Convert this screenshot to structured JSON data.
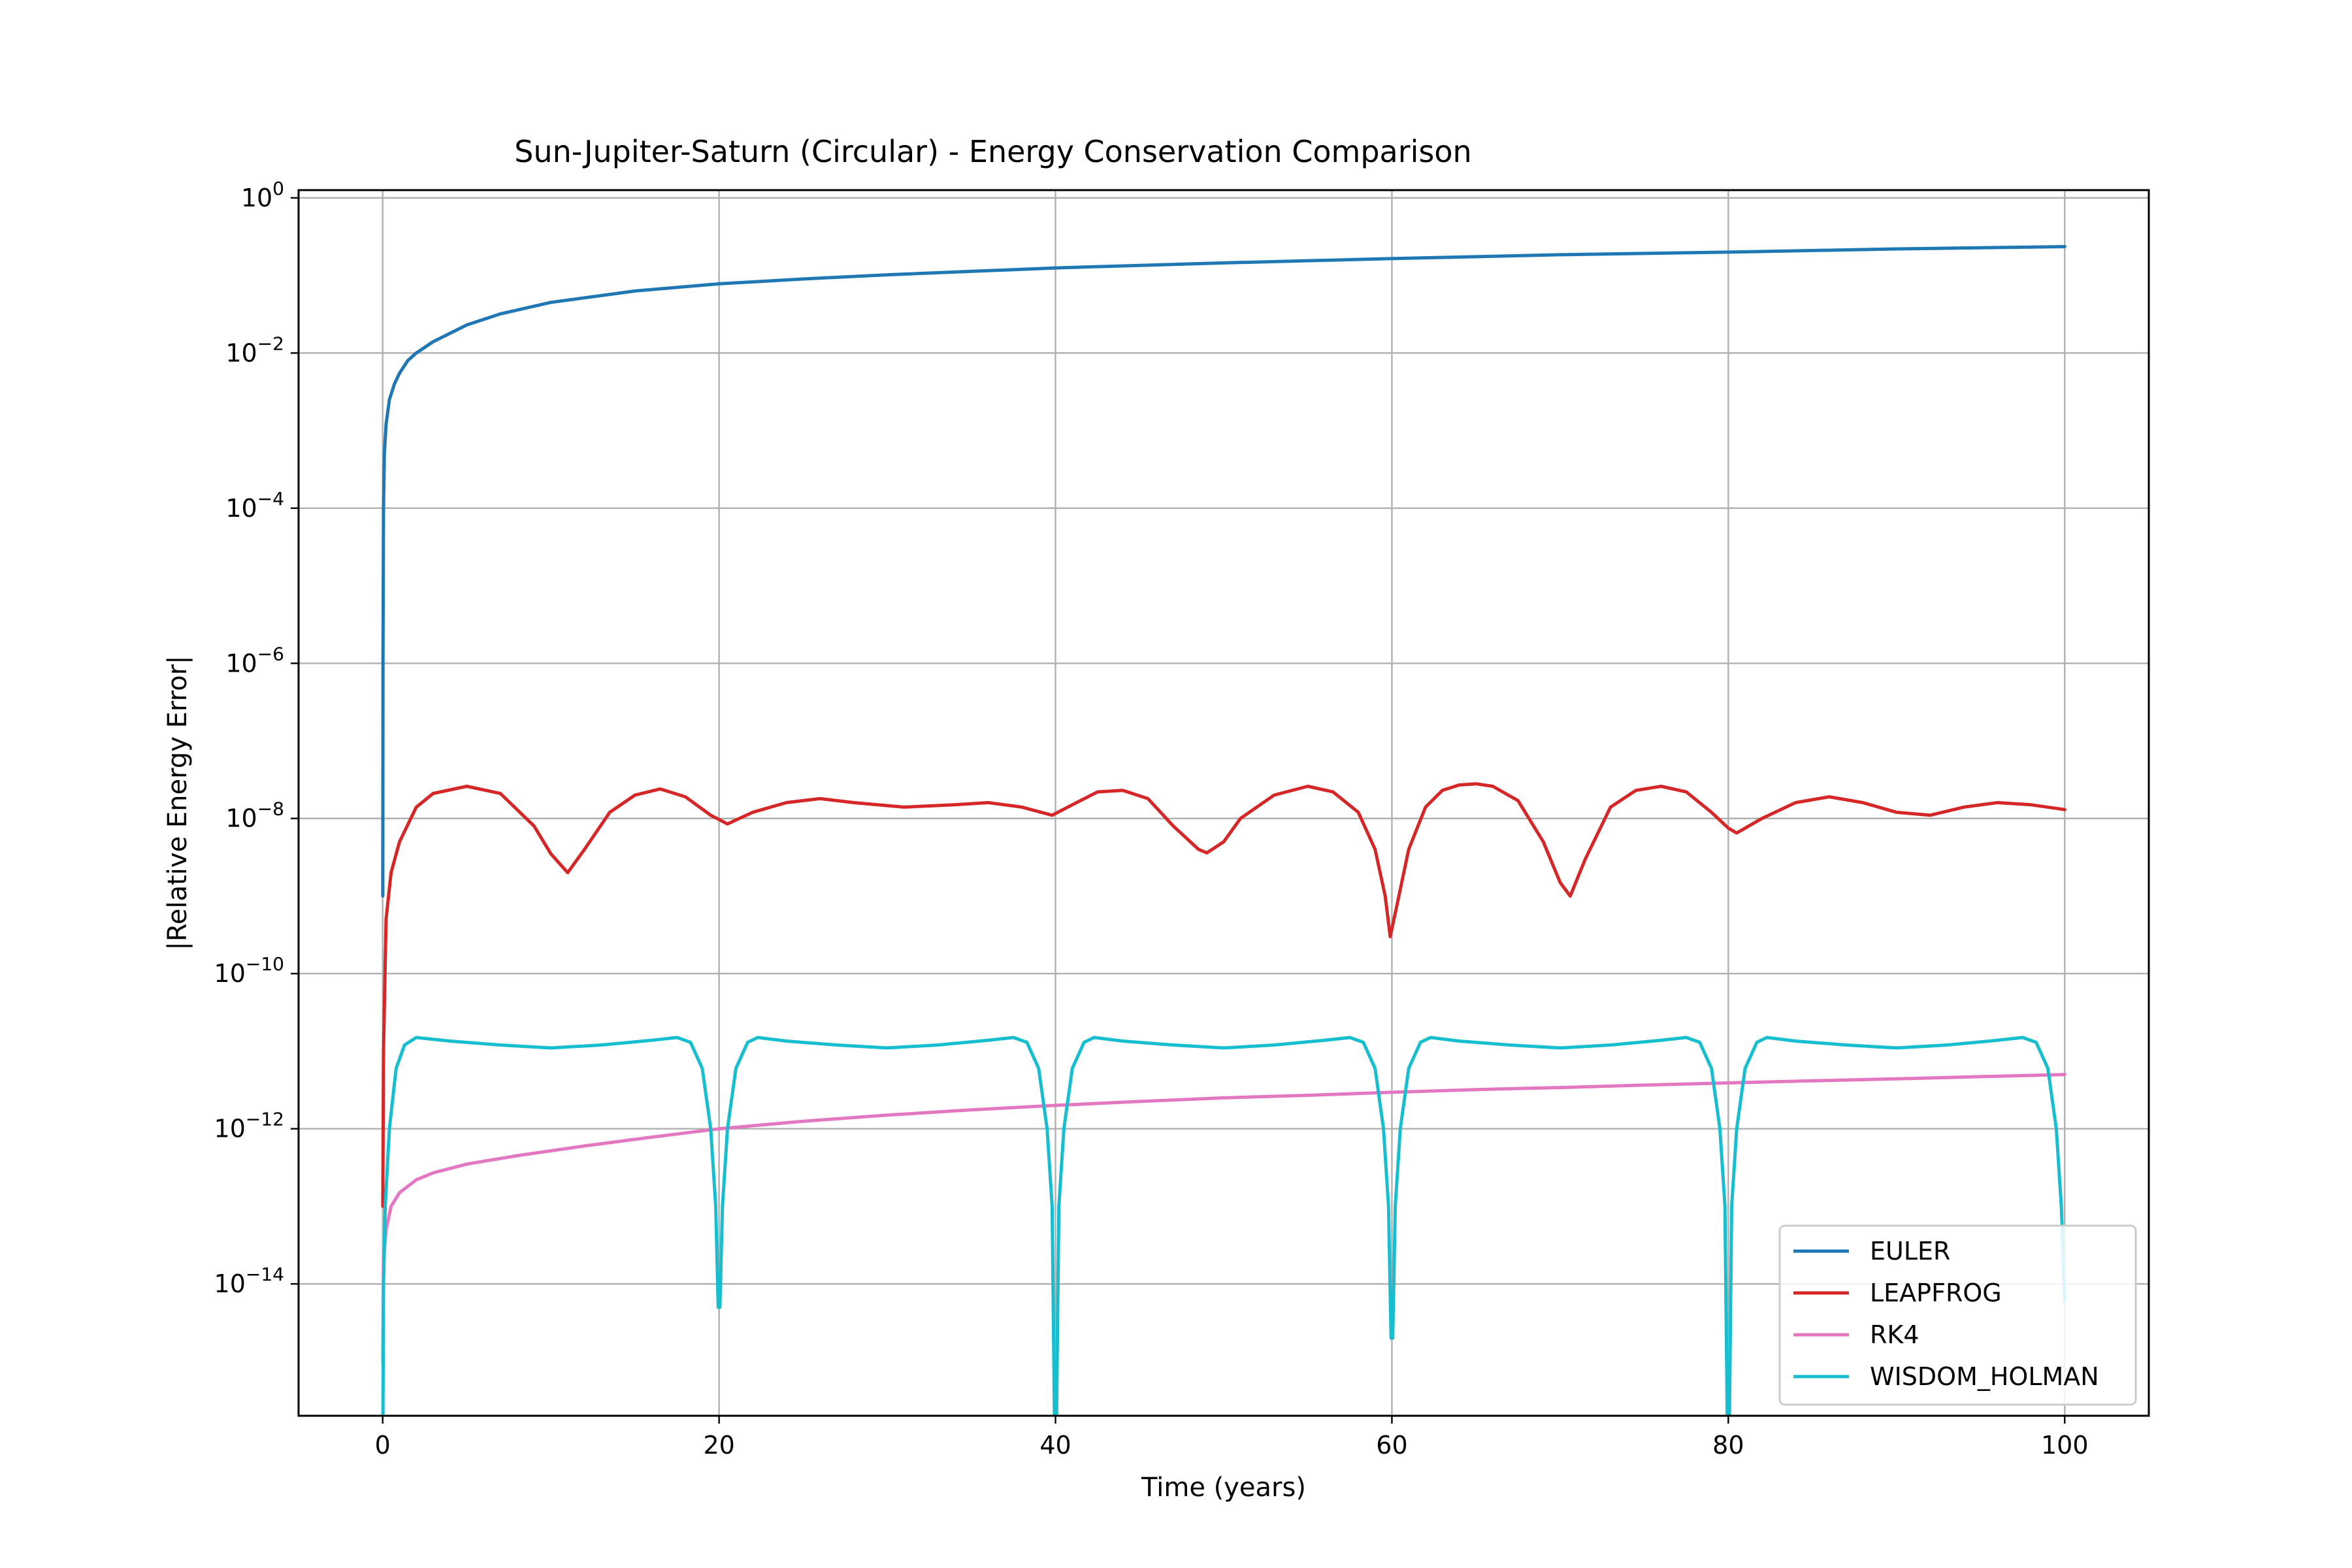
{
  "chart_data": {
    "type": "line",
    "title": "Sun-Jupiter-Saturn (Circular) - Energy Conservation Comparison",
    "xlabel": "Time (years)",
    "ylabel": "|Relative Energy Error|",
    "x_ticks": [
      "0",
      "20",
      "40",
      "60",
      "80",
      "100"
    ],
    "y_ticks": [
      {
        "base": "10",
        "exp": "0"
      },
      {
        "base": "10",
        "exp": "−2"
      },
      {
        "base": "10",
        "exp": "−4"
      },
      {
        "base": "10",
        "exp": "−6"
      },
      {
        "base": "10",
        "exp": "−8"
      },
      {
        "base": "10",
        "exp": "−10"
      },
      {
        "base": "10",
        "exp": "−12"
      },
      {
        "base": "10",
        "exp": "−14"
      }
    ],
    "xlim": [
      -5,
      105
    ],
    "ylim_log10": [
      -15.7,
      0.1
    ],
    "yscale": "log",
    "grid": true,
    "legend_position": "lower right",
    "series": [
      {
        "name": "EULER",
        "color": "#1f77b4",
        "points": [
          [
            0.005,
            1e-09
          ],
          [
            0.02,
            1e-06
          ],
          [
            0.05,
            0.0001
          ],
          [
            0.1,
            0.0005
          ],
          [
            0.2,
            0.0012
          ],
          [
            0.4,
            0.0025
          ],
          [
            0.7,
            0.004
          ],
          [
            1,
            0.0055
          ],
          [
            1.5,
            0.008
          ],
          [
            2,
            0.01
          ],
          [
            3,
            0.014
          ],
          [
            5,
            0.023
          ],
          [
            7,
            0.032
          ],
          [
            10,
            0.045
          ],
          [
            15,
            0.063
          ],
          [
            20,
            0.078
          ],
          [
            25,
            0.09
          ],
          [
            30,
            0.102
          ],
          [
            40,
            0.125
          ],
          [
            50,
            0.145
          ],
          [
            60,
            0.165
          ],
          [
            70,
            0.185
          ],
          [
            80,
            0.2
          ],
          [
            90,
            0.22
          ],
          [
            100,
            0.235
          ]
        ]
      },
      {
        "name": "LEAPFROG",
        "color": "#d62728",
        "points": [
          [
            0.005,
            1e-13
          ],
          [
            0.05,
            1e-11
          ],
          [
            0.2,
            5e-10
          ],
          [
            0.5,
            2e-09
          ],
          [
            1,
            5e-09
          ],
          [
            2,
            1.4e-08
          ],
          [
            3,
            2.1e-08
          ],
          [
            5,
            2.6e-08
          ],
          [
            7,
            2.1e-08
          ],
          [
            9,
            8e-09
          ],
          [
            10,
            3.5e-09
          ],
          [
            11,
            2e-09
          ],
          [
            12,
            4e-09
          ],
          [
            13.5,
            1.2e-08
          ],
          [
            15,
            2e-08
          ],
          [
            16.5,
            2.4e-08
          ],
          [
            18,
            1.9e-08
          ],
          [
            19.5,
            1.1e-08
          ],
          [
            20.5,
            8.5e-09
          ],
          [
            22,
            1.2e-08
          ],
          [
            24,
            1.6e-08
          ],
          [
            26,
            1.8e-08
          ],
          [
            28,
            1.6e-08
          ],
          [
            31,
            1.4e-08
          ],
          [
            34,
            1.5e-08
          ],
          [
            36,
            1.6e-08
          ],
          [
            38,
            1.4e-08
          ],
          [
            39.8,
            1.1e-08
          ],
          [
            41,
            1.5e-08
          ],
          [
            42.5,
            2.2e-08
          ],
          [
            44,
            2.3e-08
          ],
          [
            45.5,
            1.8e-08
          ],
          [
            47,
            8e-09
          ],
          [
            48.5,
            4e-09
          ],
          [
            49,
            3.6e-09
          ],
          [
            50,
            5e-09
          ],
          [
            51,
            1e-08
          ],
          [
            53,
            2e-08
          ],
          [
            55,
            2.6e-08
          ],
          [
            56.5,
            2.2e-08
          ],
          [
            58,
            1.2e-08
          ],
          [
            59,
            4e-09
          ],
          [
            59.6,
            1e-09
          ],
          [
            59.9,
            3e-10
          ],
          [
            60.2,
            6e-10
          ],
          [
            61,
            4e-09
          ],
          [
            62,
            1.4e-08
          ],
          [
            63,
            2.3e-08
          ],
          [
            64,
            2.7e-08
          ],
          [
            65,
            2.8e-08
          ],
          [
            66,
            2.6e-08
          ],
          [
            67.5,
            1.7e-08
          ],
          [
            69,
            5e-09
          ],
          [
            70,
            1.5e-09
          ],
          [
            70.6,
            1e-09
          ],
          [
            71.5,
            3e-09
          ],
          [
            73,
            1.4e-08
          ],
          [
            74.5,
            2.3e-08
          ],
          [
            76,
            2.6e-08
          ],
          [
            77.5,
            2.2e-08
          ],
          [
            79,
            1.2e-08
          ],
          [
            80,
            7.5e-09
          ],
          [
            80.5,
            6.5e-09
          ],
          [
            82,
            1e-08
          ],
          [
            84,
            1.6e-08
          ],
          [
            86,
            1.9e-08
          ],
          [
            88,
            1.6e-08
          ],
          [
            90,
            1.2e-08
          ],
          [
            92,
            1.1e-08
          ],
          [
            94,
            1.4e-08
          ],
          [
            96,
            1.6e-08
          ],
          [
            98,
            1.5e-08
          ],
          [
            100,
            1.3e-08
          ]
        ]
      },
      {
        "name": "RK4",
        "color": "#e377c2",
        "points": [
          [
            0.005,
            1e-15
          ],
          [
            0.05,
            2e-14
          ],
          [
            0.2,
            5e-14
          ],
          [
            0.5,
            1e-13
          ],
          [
            1,
            1.5e-13
          ],
          [
            2,
            2.2e-13
          ],
          [
            3,
            2.7e-13
          ],
          [
            5,
            3.5e-13
          ],
          [
            8,
            4.5e-13
          ],
          [
            12,
            6e-13
          ],
          [
            16,
            7.8e-13
          ],
          [
            20,
            1e-12
          ],
          [
            25,
            1.25e-12
          ],
          [
            30,
            1.5e-12
          ],
          [
            35,
            1.75e-12
          ],
          [
            40,
            2e-12
          ],
          [
            45,
            2.25e-12
          ],
          [
            50,
            2.5e-12
          ],
          [
            55,
            2.7e-12
          ],
          [
            60,
            2.95e-12
          ],
          [
            65,
            3.2e-12
          ],
          [
            70,
            3.4e-12
          ],
          [
            75,
            3.65e-12
          ],
          [
            80,
            3.9e-12
          ],
          [
            85,
            4.15e-12
          ],
          [
            90,
            4.4e-12
          ],
          [
            95,
            4.7e-12
          ],
          [
            100,
            5e-12
          ]
        ]
      },
      {
        "name": "WISDOM_HOLMAN",
        "color": "#17becf",
        "points": [
          [
            0.01,
            1e-16
          ],
          [
            0.05,
            1e-14
          ],
          [
            0.15,
            1e-13
          ],
          [
            0.4,
            1e-12
          ],
          [
            0.8,
            6e-12
          ],
          [
            1.3,
            1.2e-11
          ],
          [
            2,
            1.5e-11
          ],
          [
            4,
            1.35e-11
          ],
          [
            7,
            1.2e-11
          ],
          [
            10,
            1.1e-11
          ],
          [
            13,
            1.2e-11
          ],
          [
            16,
            1.38e-11
          ],
          [
            17.5,
            1.5e-11
          ],
          [
            18.3,
            1.3e-11
          ],
          [
            19,
            6e-12
          ],
          [
            19.5,
            1e-12
          ],
          [
            19.8,
            1e-13
          ],
          [
            19.95,
            5e-15
          ],
          [
            20.05,
            5e-15
          ],
          [
            20.2,
            1e-13
          ],
          [
            20.5,
            1e-12
          ],
          [
            21,
            6e-12
          ],
          [
            21.7,
            1.3e-11
          ],
          [
            22.3,
            1.5e-11
          ],
          [
            24,
            1.35e-11
          ],
          [
            27,
            1.2e-11
          ],
          [
            30,
            1.1e-11
          ],
          [
            33,
            1.2e-11
          ],
          [
            36,
            1.38e-11
          ],
          [
            37.5,
            1.5e-11
          ],
          [
            38.3,
            1.3e-11
          ],
          [
            39,
            6e-12
          ],
          [
            39.5,
            1e-12
          ],
          [
            39.8,
            1e-13
          ],
          [
            39.95,
            1e-16
          ],
          [
            40.05,
            1e-16
          ],
          [
            40.2,
            1e-13
          ],
          [
            40.5,
            1e-12
          ],
          [
            41,
            6e-12
          ],
          [
            41.7,
            1.3e-11
          ],
          [
            42.3,
            1.5e-11
          ],
          [
            44,
            1.35e-11
          ],
          [
            47,
            1.2e-11
          ],
          [
            50,
            1.1e-11
          ],
          [
            53,
            1.2e-11
          ],
          [
            56,
            1.38e-11
          ],
          [
            57.5,
            1.5e-11
          ],
          [
            58.3,
            1.3e-11
          ],
          [
            59,
            6e-12
          ],
          [
            59.5,
            1e-12
          ],
          [
            59.8,
            1e-13
          ],
          [
            59.95,
            2e-15
          ],
          [
            60.05,
            2e-15
          ],
          [
            60.2,
            1e-13
          ],
          [
            60.5,
            1e-12
          ],
          [
            61,
            6e-12
          ],
          [
            61.7,
            1.3e-11
          ],
          [
            62.3,
            1.5e-11
          ],
          [
            64,
            1.35e-11
          ],
          [
            67,
            1.2e-11
          ],
          [
            70,
            1.1e-11
          ],
          [
            73,
            1.2e-11
          ],
          [
            76,
            1.38e-11
          ],
          [
            77.5,
            1.5e-11
          ],
          [
            78.3,
            1.3e-11
          ],
          [
            79,
            6e-12
          ],
          [
            79.5,
            1e-12
          ],
          [
            79.8,
            1e-13
          ],
          [
            79.95,
            1e-16
          ],
          [
            80.05,
            1e-16
          ],
          [
            80.2,
            1e-13
          ],
          [
            80.5,
            1e-12
          ],
          [
            81,
            6e-12
          ],
          [
            81.7,
            1.3e-11
          ],
          [
            82.3,
            1.5e-11
          ],
          [
            84,
            1.35e-11
          ],
          [
            87,
            1.2e-11
          ],
          [
            90,
            1.1e-11
          ],
          [
            93,
            1.2e-11
          ],
          [
            96,
            1.38e-11
          ],
          [
            97.5,
            1.5e-11
          ],
          [
            98.3,
            1.3e-11
          ],
          [
            99,
            6e-12
          ],
          [
            99.5,
            1e-12
          ],
          [
            99.8,
            1e-13
          ],
          [
            100,
            6e-15
          ]
        ]
      }
    ]
  }
}
